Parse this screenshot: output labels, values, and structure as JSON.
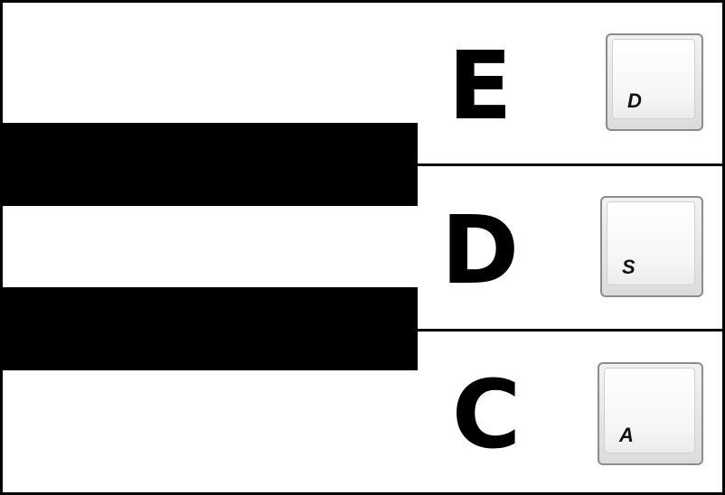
{
  "rows": [
    {
      "note": "E",
      "key": "D"
    },
    {
      "note": "D",
      "key": "S"
    },
    {
      "note": "C",
      "key": "A"
    }
  ],
  "colors": {
    "outline": "#000000",
    "black_key": "#000000",
    "keycap": "#e6e6e6"
  }
}
